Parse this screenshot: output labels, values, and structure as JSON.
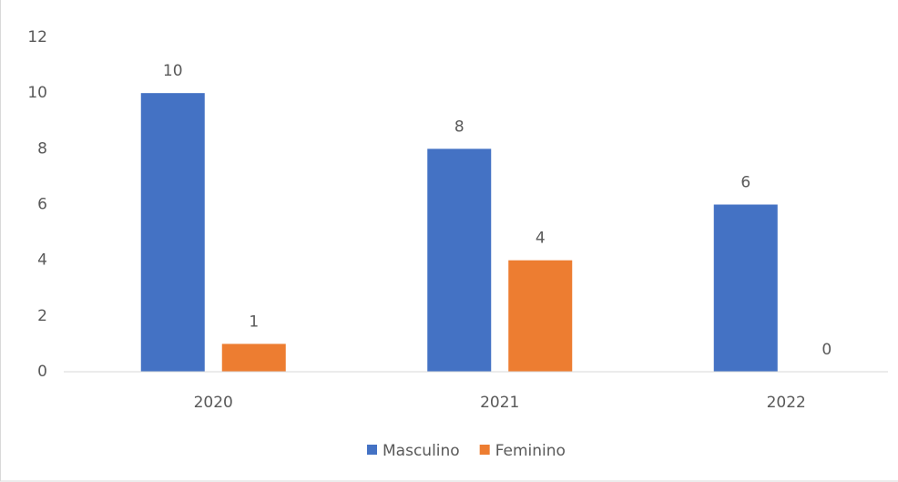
{
  "chart_data": {
    "type": "bar",
    "categories": [
      "2020",
      "2021",
      "2022"
    ],
    "series": [
      {
        "name": "Masculino",
        "color": "#4472c4",
        "values": [
          10,
          8,
          6
        ]
      },
      {
        "name": "Feminino",
        "color": "#ed7d31",
        "values": [
          1,
          4,
          0
        ]
      }
    ],
    "ylim": [
      0,
      12
    ],
    "yticks": [
      0,
      2,
      4,
      6,
      8,
      10,
      12
    ],
    "grid": false,
    "legend": "bottom"
  }
}
